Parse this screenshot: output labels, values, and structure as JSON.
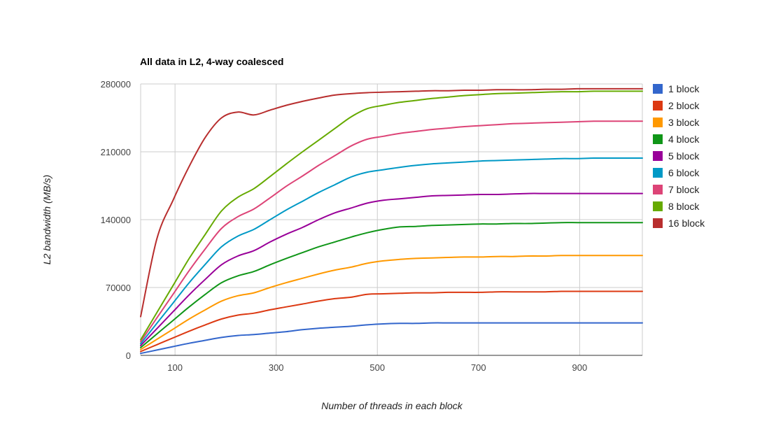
{
  "chart_data": {
    "type": "line",
    "title": "All data in L2, 4-way coalesced",
    "xlabel": "Number of threads in each block",
    "ylabel": "L2 bandwidth (MB/s)",
    "xlim": [
      32,
      1024
    ],
    "ylim": [
      0,
      280000
    ],
    "x_ticks": [
      100,
      300,
      500,
      700,
      900
    ],
    "y_ticks": [
      0,
      70000,
      140000,
      210000,
      280000
    ],
    "x_tick_labels": [
      "100",
      "300",
      "500",
      "700",
      "900"
    ],
    "y_tick_labels": [
      "0",
      "70000",
      "140000",
      "210000",
      "280000"
    ],
    "legend_position": "right",
    "x": [
      32,
      64,
      96,
      128,
      160,
      192,
      224,
      256,
      288,
      320,
      352,
      384,
      416,
      448,
      480,
      512,
      544,
      576,
      608,
      640,
      672,
      704,
      736,
      768,
      800,
      832,
      864,
      896,
      928,
      960,
      992,
      1024
    ],
    "series": [
      {
        "name": "1 block",
        "color": "#3366cc",
        "values": [
          2000,
          5500,
          9000,
          12500,
          15500,
          18500,
          20500,
          21500,
          23000,
          24500,
          26500,
          28000,
          29000,
          30000,
          31500,
          32500,
          33000,
          33000,
          33500,
          33500,
          33500,
          33500,
          33500,
          33500,
          33500,
          33500,
          33500,
          33500,
          33500,
          33500,
          33500,
          33500
        ]
      },
      {
        "name": "2 block",
        "color": "#dc3912",
        "values": [
          4000,
          11000,
          18000,
          25000,
          31500,
          37500,
          41500,
          43500,
          47000,
          50000,
          53000,
          56000,
          58500,
          60000,
          63000,
          63500,
          64000,
          64500,
          64500,
          65000,
          65000,
          65000,
          65500,
          65500,
          65500,
          65500,
          66000,
          66000,
          66000,
          66000,
          66000,
          66000
        ]
      },
      {
        "name": "3 block",
        "color": "#ff9900",
        "values": [
          6000,
          16500,
          27000,
          37500,
          47000,
          56000,
          61500,
          64500,
          70000,
          75000,
          79500,
          84000,
          88000,
          91000,
          95000,
          97500,
          99000,
          100000,
          100500,
          101000,
          101500,
          101500,
          102000,
          102000,
          102500,
          102500,
          103000,
          103000,
          103000,
          103000,
          103000,
          103000
        ]
      },
      {
        "name": "4 block",
        "color": "#109618",
        "values": [
          8000,
          22000,
          36000,
          50000,
          63000,
          75000,
          82000,
          86500,
          93500,
          100000,
          106000,
          112000,
          117000,
          122000,
          126500,
          130000,
          132500,
          133000,
          134000,
          134500,
          135000,
          135500,
          135500,
          136000,
          136000,
          136500,
          137000,
          137000,
          137000,
          137000,
          137000,
          137000
        ]
      },
      {
        "name": "5 block",
        "color": "#990099",
        "values": [
          10000,
          27500,
          45000,
          62500,
          78500,
          93500,
          102500,
          108000,
          117000,
          125000,
          132000,
          140000,
          147000,
          152000,
          157000,
          160000,
          161500,
          163000,
          164500,
          165000,
          165500,
          166000,
          166000,
          166500,
          167000,
          167000,
          167000,
          167000,
          167000,
          167000,
          167000,
          167000
        ]
      },
      {
        "name": "6 block",
        "color": "#0099c6",
        "values": [
          12000,
          33000,
          54000,
          75000,
          94000,
          112000,
          123000,
          130000,
          140000,
          150000,
          159000,
          168000,
          176000,
          184000,
          189000,
          191500,
          194000,
          196000,
          197500,
          198500,
          199500,
          200500,
          201000,
          201500,
          202000,
          202500,
          203000,
          203000,
          203500,
          203500,
          203500,
          203500
        ]
      },
      {
        "name": "7 block",
        "color": "#dd4477",
        "values": [
          14000,
          38500,
          63000,
          87500,
          110000,
          131000,
          143000,
          151000,
          162500,
          174500,
          185000,
          196000,
          206000,
          216000,
          223000,
          226000,
          229000,
          231000,
          233000,
          234500,
          236000,
          237000,
          238000,
          239000,
          239500,
          240000,
          240500,
          241000,
          241500,
          241500,
          241500,
          241500
        ]
      },
      {
        "name": "8 block",
        "color": "#66aa00",
        "values": [
          16000,
          44000,
          72000,
          100000,
          125000,
          149000,
          163000,
          172000,
          184500,
          197500,
          210000,
          222000,
          234000,
          246000,
          254500,
          258000,
          261000,
          263000,
          265000,
          266500,
          268000,
          269000,
          270000,
          270500,
          271000,
          271500,
          272000,
          272000,
          272500,
          272500,
          272500,
          272500
        ]
      },
      {
        "name": "16 block",
        "color": "#b82e2e",
        "values": [
          40000,
          120000,
          160000,
          195000,
          225000,
          245000,
          251000,
          248000,
          253000,
          258000,
          262000,
          265500,
          268500,
          270000,
          271000,
          271500,
          272000,
          272500,
          273000,
          273000,
          273500,
          273500,
          274000,
          274000,
          274000,
          274500,
          274500,
          275000,
          275000,
          275000,
          275000,
          275000
        ]
      }
    ]
  }
}
